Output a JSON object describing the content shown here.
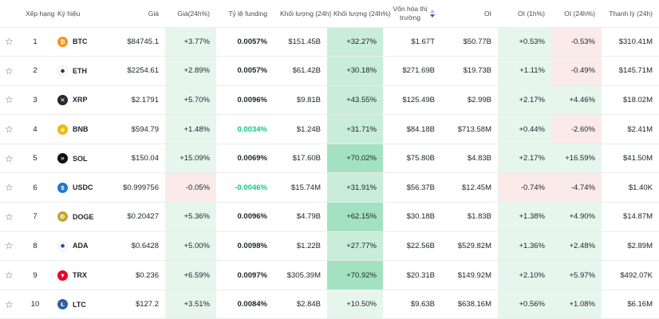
{
  "headers": {
    "rank": "Xếp hạng",
    "symbol": "Ký hiệu",
    "price": "Giá",
    "change24h": "Giá(24h%)",
    "funding": "Tỷ lệ funding",
    "volume": "Khối lượng (24h)",
    "volumeChange": "Khối lượng (24h%)",
    "marketCap": "Vốn hóa thị trường",
    "oi": "OI",
    "oi1h": "OI (1h%)",
    "oi24h": "OI (24h%)",
    "liquidation": "Thanh lý (24h)"
  },
  "colors": {
    "green_light": "#e6f6ed",
    "green_mid": "#c8edd8",
    "green_strong": "#a3e2c0",
    "red_light": "#fbeaea"
  },
  "rows": [
    {
      "rank": "1",
      "symbol": "BTC",
      "icon": "btc-icon",
      "iconColor": "#f7931a",
      "glyph": "₿",
      "price": "$84745.1",
      "change24h": "+3.77%",
      "funding": "0.0057%",
      "volume": "$151.45B",
      "volumeChange": "+32.27%",
      "marketCap": "$1.67T",
      "oi": "$50.77B",
      "oi1h": "+0.53%",
      "oi24h": "-0.53%",
      "liquidation": "$310.41M"
    },
    {
      "rank": "2",
      "symbol": "ETH",
      "icon": "eth-icon",
      "iconColor": "#ffffff",
      "glyph": "◆",
      "price": "$2254.61",
      "change24h": "+2.89%",
      "funding": "0.0057%",
      "volume": "$61.42B",
      "volumeChange": "+30.18%",
      "marketCap": "$271.69B",
      "oi": "$19.73B",
      "oi1h": "+1.11%",
      "oi24h": "-0.49%",
      "liquidation": "$145.71M"
    },
    {
      "rank": "3",
      "symbol": "XRP",
      "icon": "xrp-icon",
      "iconColor": "#23292f",
      "glyph": "✕",
      "price": "$2.1791",
      "change24h": "+5.70%",
      "funding": "0.0096%",
      "volume": "$9.81B",
      "volumeChange": "+43.55%",
      "marketCap": "$125.49B",
      "oi": "$2.99B",
      "oi1h": "+2.17%",
      "oi24h": "+4.46%",
      "liquidation": "$18.02M"
    },
    {
      "rank": "4",
      "symbol": "BNB",
      "icon": "bnb-icon",
      "iconColor": "#f0b90b",
      "glyph": "◈",
      "price": "$594.79",
      "change24h": "+1.48%",
      "funding": "0.0034%",
      "volume": "$1.24B",
      "volumeChange": "+31.71%",
      "marketCap": "$84.18B",
      "oi": "$713.58M",
      "oi1h": "+0.44%",
      "oi24h": "-2.60%",
      "liquidation": "$2.41M"
    },
    {
      "rank": "5",
      "symbol": "SOL",
      "icon": "sol-icon",
      "iconColor": "#111111",
      "glyph": "≡",
      "price": "$150.04",
      "change24h": "+15.09%",
      "funding": "0.0069%",
      "volume": "$17.60B",
      "volumeChange": "+70.02%",
      "marketCap": "$75.80B",
      "oi": "$4.83B",
      "oi1h": "+2.17%",
      "oi24h": "+16.59%",
      "liquidation": "$41.50M"
    },
    {
      "rank": "6",
      "symbol": "USDC",
      "icon": "usdc-icon",
      "iconColor": "#2775ca",
      "glyph": "$",
      "price": "$0.999756",
      "change24h": "-0.05%",
      "funding": "-0.0046%",
      "volume": "$15.74M",
      "volumeChange": "+31.91%",
      "marketCap": "$56.37B",
      "oi": "$12.45M",
      "oi1h": "-0.74%",
      "oi24h": "-4.74%",
      "liquidation": "$1.40K"
    },
    {
      "rank": "7",
      "symbol": "DOGE",
      "icon": "doge-icon",
      "iconColor": "#c2a633",
      "glyph": "Ð",
      "price": "$0.20427",
      "change24h": "+5.36%",
      "funding": "0.0096%",
      "volume": "$4.79B",
      "volumeChange": "+62.15%",
      "marketCap": "$30.18B",
      "oi": "$1.83B",
      "oi1h": "+1.38%",
      "oi24h": "+4.90%",
      "liquidation": "$14.87M"
    },
    {
      "rank": "8",
      "symbol": "ADA",
      "icon": "ada-icon",
      "iconColor": "#ffffff",
      "glyph": "✺",
      "price": "$0.6428",
      "change24h": "+5.00%",
      "funding": "0.0098%",
      "volume": "$1.22B",
      "volumeChange": "+27.77%",
      "marketCap": "$22.56B",
      "oi": "$529.82M",
      "oi1h": "+1.36%",
      "oi24h": "+2.48%",
      "liquidation": "$2.89M"
    },
    {
      "rank": "9",
      "symbol": "TRX",
      "icon": "trx-icon",
      "iconColor": "#eb0029",
      "glyph": "▼",
      "price": "$0.236",
      "change24h": "+6.59%",
      "funding": "0.0097%",
      "volume": "$305.39M",
      "volumeChange": "+70.92%",
      "marketCap": "$20.31B",
      "oi": "$149.92M",
      "oi1h": "+2.10%",
      "oi24h": "+5.97%",
      "liquidation": "$492.07K"
    },
    {
      "rank": "10",
      "symbol": "LTC",
      "icon": "ltc-icon",
      "iconColor": "#345d9d",
      "glyph": "Ł",
      "price": "$127.2",
      "change24h": "+3.51%",
      "funding": "0.0084%",
      "volume": "$2.84B",
      "volumeChange": "+10.50%",
      "marketCap": "$9.63B",
      "oi": "$638.16M",
      "oi1h": "+0.56%",
      "oi24h": "+1.08%",
      "liquidation": "$6.16M"
    }
  ]
}
